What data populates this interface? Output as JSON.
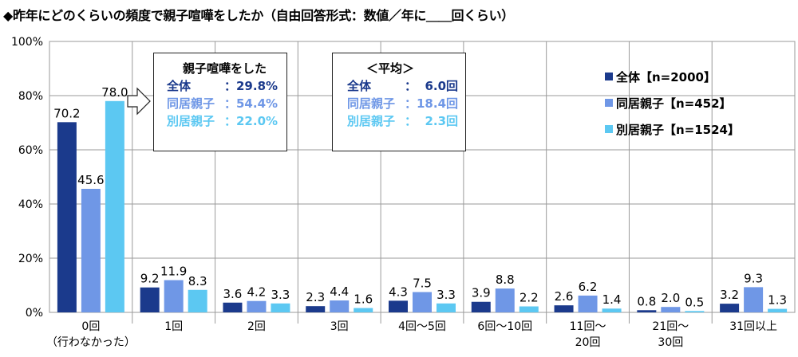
{
  "title": "◆昨年にどのくらいの頻度で親子喧嘩をしたか（自由回答形式：数値／年に＿＿回くらい）",
  "colors": {
    "series0": "#1b3a8c",
    "series1": "#6f97e6",
    "series2": "#5cc8f2",
    "grid": "#9a9a9a",
    "axis": "#444444"
  },
  "legend": [
    {
      "label": "全体【n=2000】"
    },
    {
      "label": "同居親子【n=452】"
    },
    {
      "label": "別居親子【n=1524】"
    }
  ],
  "box_share": {
    "heading": "親子喧嘩をした",
    "rows": [
      {
        "label": "全体",
        "value": "：29.8%"
      },
      {
        "label": "同居親子",
        "value": "：54.4%"
      },
      {
        "label": "別居親子",
        "value": "：22.0%"
      }
    ]
  },
  "box_avg": {
    "heading": "＜平均＞",
    "rows": [
      {
        "label": "全体",
        "value": "：  6.0回"
      },
      {
        "label": "同居親子",
        "value": "：18.4回"
      },
      {
        "label": "別居親子",
        "value": "：  2.3回"
      }
    ]
  },
  "chart_data": {
    "type": "bar",
    "ylim": [
      0,
      100
    ],
    "yticks": [
      "0%",
      "20%",
      "40%",
      "60%",
      "80%",
      "100%"
    ],
    "categories": [
      [
        "0回",
        "（行わなかった）"
      ],
      [
        "1回"
      ],
      [
        "2回"
      ],
      [
        "3回"
      ],
      [
        "4回～5回"
      ],
      [
        "6回～10回"
      ],
      [
        "11回～",
        "20回"
      ],
      [
        "21回～",
        "30回"
      ],
      [
        "31回以上"
      ]
    ],
    "series": [
      {
        "name": "全体【n=2000】",
        "values": [
          70.2,
          9.2,
          3.6,
          2.3,
          4.3,
          3.9,
          2.6,
          0.8,
          3.2
        ]
      },
      {
        "name": "同居親子【n=452】",
        "values": [
          45.6,
          11.9,
          4.2,
          4.4,
          7.5,
          8.8,
          6.2,
          2.0,
          9.3
        ]
      },
      {
        "name": "別居親子【n=1524】",
        "values": [
          78.0,
          8.3,
          3.3,
          1.6,
          3.3,
          2.2,
          1.4,
          0.5,
          1.3
        ]
      }
    ]
  }
}
